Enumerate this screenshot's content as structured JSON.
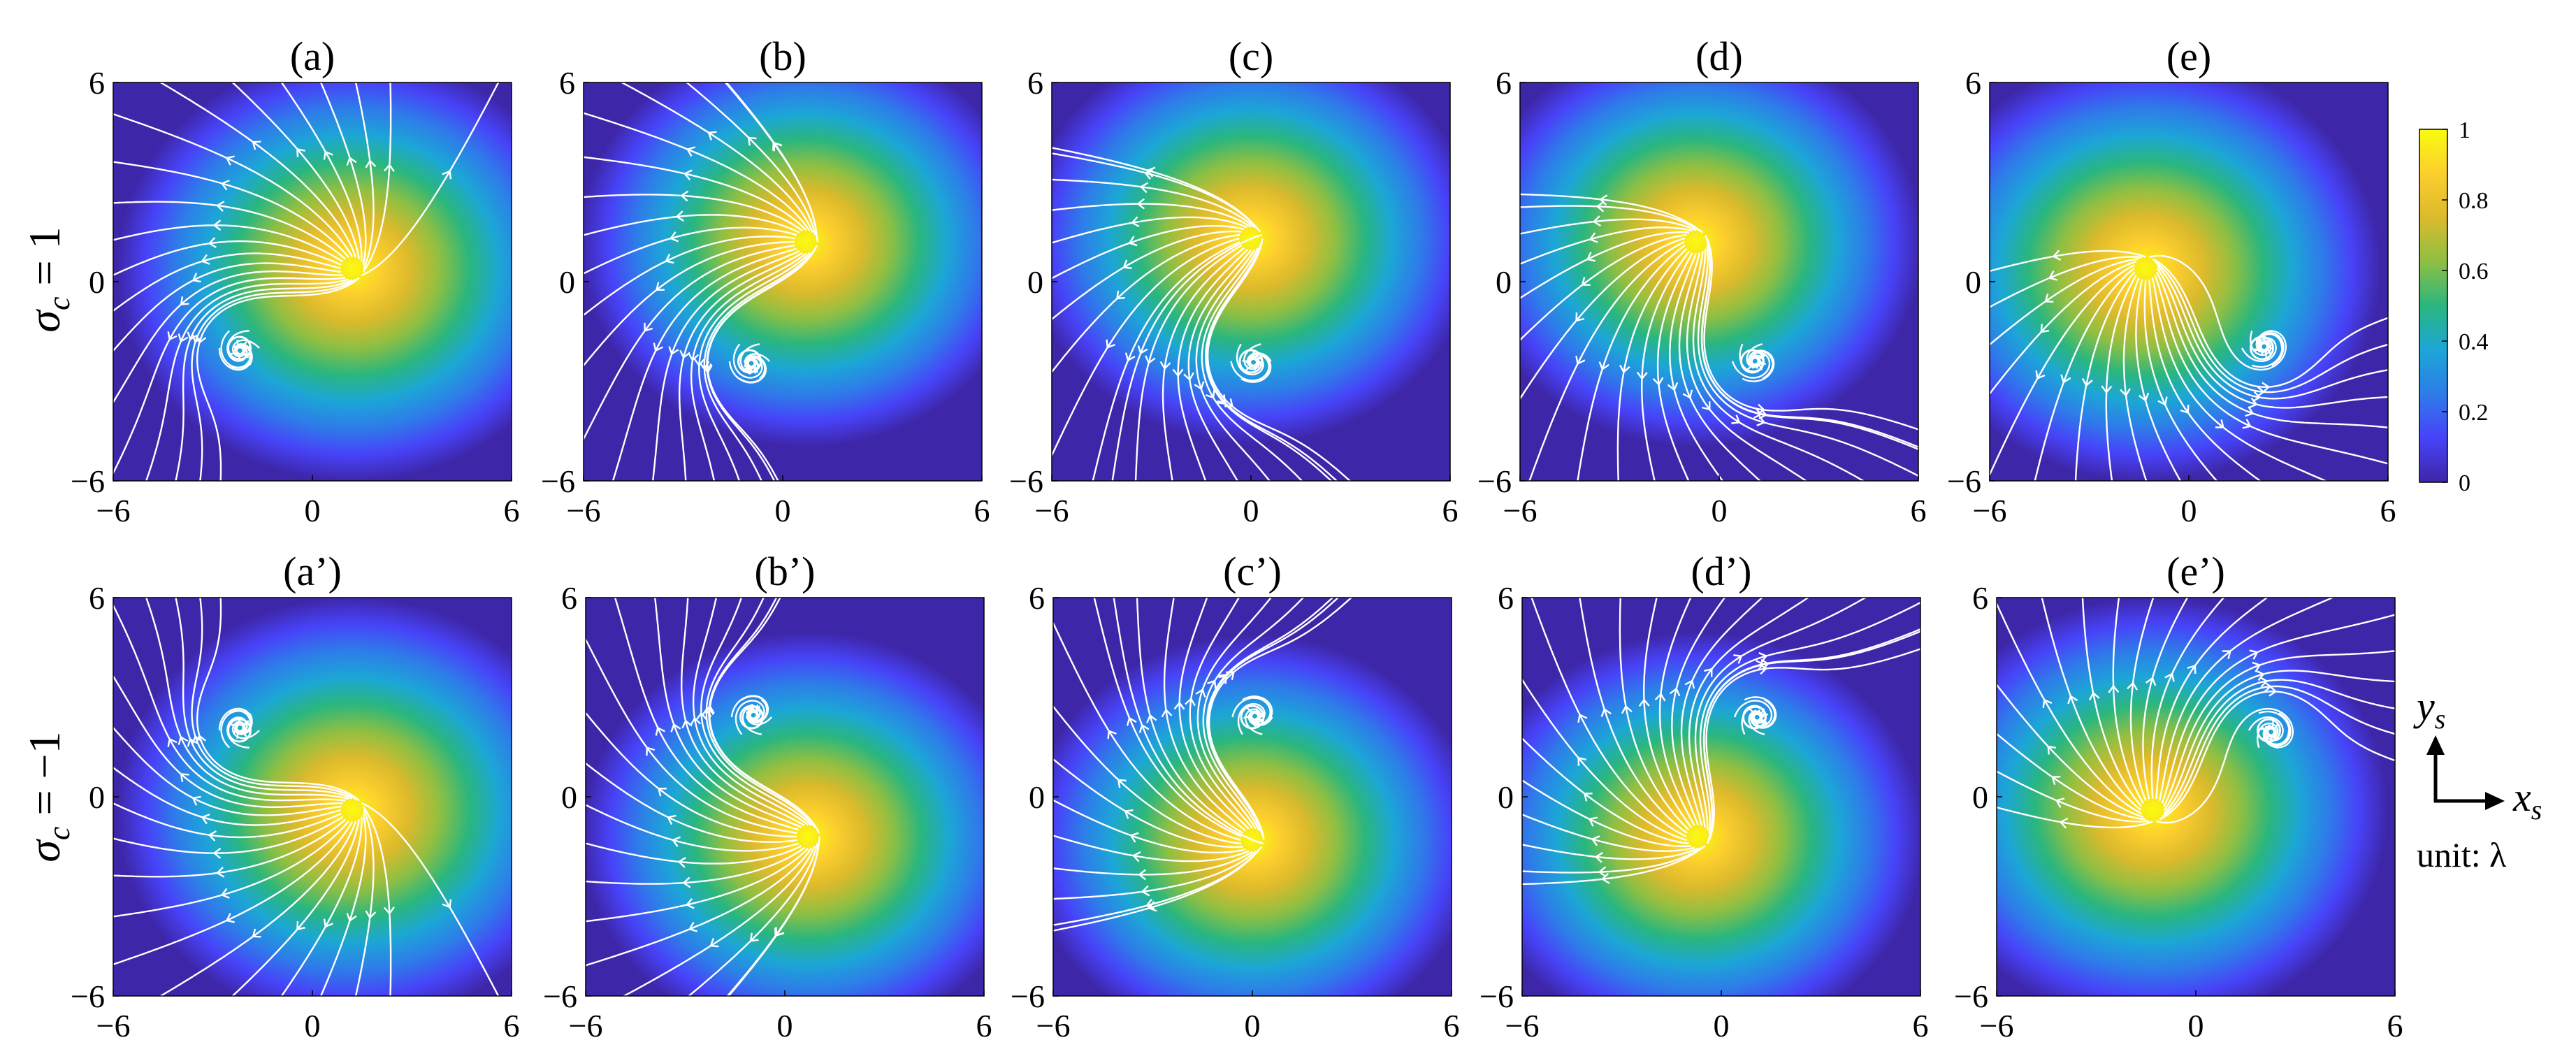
{
  "figure": {
    "row_labels": [
      {
        "symbol": "σ",
        "subscript": "c",
        "rest": " = 1"
      },
      {
        "symbol": "σ",
        "subscript": "c",
        "rest": " = −1"
      }
    ],
    "unit_label": "unit: λ",
    "axis_indicator": {
      "y": "y",
      "y_sub": "s",
      "x": "x",
      "x_sub": "s"
    }
  },
  "chart_data": [
    {
      "type": "heatmap",
      "title": "(a)",
      "x": {
        "ticks": [
          "−6",
          "0",
          "6"
        ],
        "range": [
          -6,
          6
        ]
      },
      "y": {
        "ticks": [
          "−6",
          "0",
          "6"
        ],
        "range": [
          -6,
          6
        ]
      },
      "intensity_peak": [
        1.2,
        0.4
      ],
      "peak_sigma": 2.6,
      "vortex": [
        -2.2,
        -2.0
      ],
      "vortex_sense": 1
    },
    {
      "type": "heatmap",
      "title": "(b)",
      "x": {
        "ticks": [
          "−6",
          "0",
          "6"
        ],
        "range": [
          -6,
          6
        ]
      },
      "y": {
        "ticks": [
          "−6",
          "0",
          "6"
        ],
        "range": [
          -6,
          6
        ]
      },
      "intensity_peak": [
        0.7,
        1.2
      ],
      "peak_sigma": 2.5,
      "vortex": [
        -1.0,
        -2.4
      ],
      "vortex_sense": 1
    },
    {
      "type": "heatmap",
      "title": "(c)",
      "x": {
        "ticks": [
          "−6",
          "0",
          "6"
        ],
        "range": [
          -6,
          6
        ]
      },
      "y": {
        "ticks": [
          "−6",
          "0",
          "6"
        ],
        "range": [
          -6,
          6
        ]
      },
      "intensity_peak": [
        0,
        1.3
      ],
      "peak_sigma": 2.5,
      "vortex": [
        0,
        -2.4
      ],
      "vortex_sense": 1
    },
    {
      "type": "heatmap",
      "title": "(d)",
      "x": {
        "ticks": [
          "−6",
          "0",
          "6"
        ],
        "range": [
          -6,
          6
        ]
      },
      "y": {
        "ticks": [
          "−6",
          "0",
          "6"
        ],
        "range": [
          -6,
          6
        ]
      },
      "intensity_peak": [
        -0.7,
        1.2
      ],
      "peak_sigma": 2.5,
      "vortex": [
        1.0,
        -2.4
      ],
      "vortex_sense": 1
    },
    {
      "type": "heatmap",
      "title": "(e)",
      "x": {
        "ticks": [
          "−6",
          "0",
          "6"
        ],
        "range": [
          -6,
          6
        ]
      },
      "y": {
        "ticks": [
          "−6",
          "0",
          "6"
        ],
        "range": [
          -6,
          6
        ]
      },
      "intensity_peak": [
        -1.3,
        0.4
      ],
      "peak_sigma": 2.6,
      "vortex": [
        2.2,
        -2.0
      ],
      "vortex_sense": 1
    },
    {
      "type": "heatmap",
      "title": "(a’)",
      "x": {
        "ticks": [
          "−6",
          "0",
          "6"
        ],
        "range": [
          -6,
          6
        ]
      },
      "y": {
        "ticks": [
          "−6",
          "0",
          "6"
        ],
        "range": [
          -6,
          6
        ]
      },
      "intensity_peak": [
        1.2,
        -0.4
      ],
      "peak_sigma": 2.6,
      "vortex": [
        -2.2,
        2.0
      ],
      "vortex_sense": -1
    },
    {
      "type": "heatmap",
      "title": "(b’)",
      "x": {
        "ticks": [
          "−6",
          "0",
          "6"
        ],
        "range": [
          -6,
          6
        ]
      },
      "y": {
        "ticks": [
          "−6",
          "0",
          "6"
        ],
        "range": [
          -6,
          6
        ]
      },
      "intensity_peak": [
        0.7,
        -1.2
      ],
      "peak_sigma": 2.5,
      "vortex": [
        -1.0,
        2.4
      ],
      "vortex_sense": -1
    },
    {
      "type": "heatmap",
      "title": "(c’)",
      "x": {
        "ticks": [
          "−6",
          "0",
          "6"
        ],
        "range": [
          -6,
          6
        ]
      },
      "y": {
        "ticks": [
          "−6",
          "0",
          "6"
        ],
        "range": [
          -6,
          6
        ]
      },
      "intensity_peak": [
        0,
        -1.3
      ],
      "peak_sigma": 2.5,
      "vortex": [
        0,
        2.4
      ],
      "vortex_sense": -1
    },
    {
      "type": "heatmap",
      "title": "(d’)",
      "x": {
        "ticks": [
          "−6",
          "0",
          "6"
        ],
        "range": [
          -6,
          6
        ]
      },
      "y": {
        "ticks": [
          "−6",
          "0",
          "6"
        ],
        "range": [
          -6,
          6
        ]
      },
      "intensity_peak": [
        -0.7,
        -1.2
      ],
      "peak_sigma": 2.5,
      "vortex": [
        1.0,
        2.4
      ],
      "vortex_sense": -1
    },
    {
      "type": "heatmap",
      "title": "(e’)",
      "x": {
        "ticks": [
          "−6",
          "0",
          "6"
        ],
        "range": [
          -6,
          6
        ]
      },
      "y": {
        "ticks": [
          "−6",
          "0",
          "6"
        ],
        "range": [
          -6,
          6
        ]
      },
      "intensity_peak": [
        -1.3,
        -0.4
      ],
      "peak_sigma": 2.6,
      "vortex": [
        2.2,
        2.0
      ],
      "vortex_sense": -1
    }
  ],
  "colorbar": {
    "ticks": [
      "1",
      "0.8",
      "0.6",
      "0.4",
      "0.2",
      "0"
    ],
    "values": [
      1,
      0.8,
      0.6,
      0.4,
      0.2,
      0
    ],
    "colormap": [
      "#3e26a8",
      "#4743f8",
      "#2e7ce9",
      "#1ca6d6",
      "#2ab67e",
      "#8ebf43",
      "#dbba2c",
      "#fcce2e",
      "#f9fb0e"
    ]
  },
  "colors": {
    "stream": "#ffffff",
    "background_low": "#3e26a8"
  }
}
